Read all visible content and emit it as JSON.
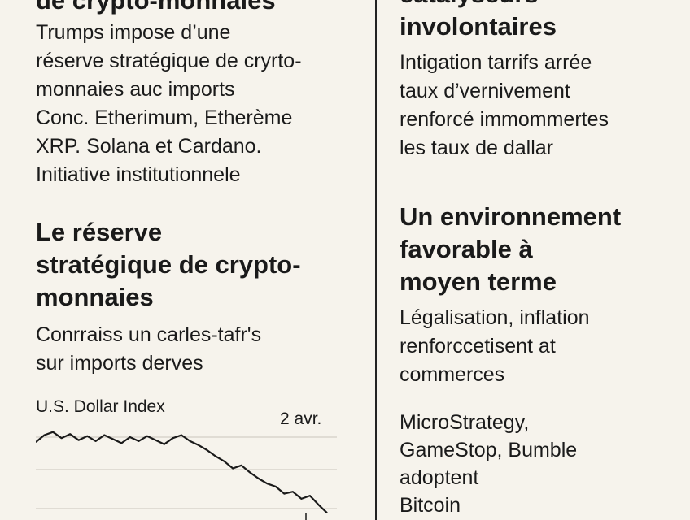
{
  "left": {
    "top_heading_tail": "de crypto-monnaies",
    "intro_lines": [
      "Trumps impose d’une",
      "réserve stratégique de cryrto-",
      "monnaies auc imports",
      "Conc. Etherimum, Etherème",
      "XRP. Solana et Cardano.",
      "Initiative institutionnele"
    ],
    "section_heading_lines": [
      "Le réserve",
      "stratégique de crypto-",
      "monnaies"
    ],
    "section_body_lines": [
      "Conrraiss un carles-tafr's",
      "sur imports derves"
    ],
    "chart_title": "U.S. Dollar Index",
    "chart_date": "2 avr."
  },
  "right": {
    "top_heading_lines": [
      "catalyseurs",
      "involontaires"
    ],
    "intro_lines": [
      "Intigation tarrifs arrée",
      "taux d’vernivement",
      "renforcé immommertes",
      "les taux de dallar"
    ],
    "section_heading_lines": [
      "Un environnement",
      "favorable à",
      "moyen terme"
    ],
    "section_body_lines": [
      "Légalisation, inflation",
      "renforccetisent at",
      "commerces"
    ],
    "companies_lines": [
      "MicroStrategy,",
      "GameStop, Bumble",
      "adoptent",
      "Bitcoin"
    ]
  },
  "chart_data": {
    "type": "line",
    "title": "U.S. Dollar Index",
    "annotations": [
      "2 avr."
    ],
    "series": [
      {
        "values": [
          104.2,
          104.9,
          105.2,
          104.6,
          105.0,
          104.4,
          104.8,
          104.3,
          104.9,
          104.5,
          104.1,
          104.7,
          104.3,
          104.8,
          104.4,
          104.0,
          104.6,
          104.9,
          104.3,
          103.9,
          103.4,
          102.8,
          102.3,
          101.6,
          101.9,
          101.2,
          100.6,
          100.1,
          99.8,
          99.1,
          99.3,
          98.6,
          98.9,
          98.0,
          97.2
        ]
      }
    ],
    "grid": true,
    "legend": "none"
  }
}
